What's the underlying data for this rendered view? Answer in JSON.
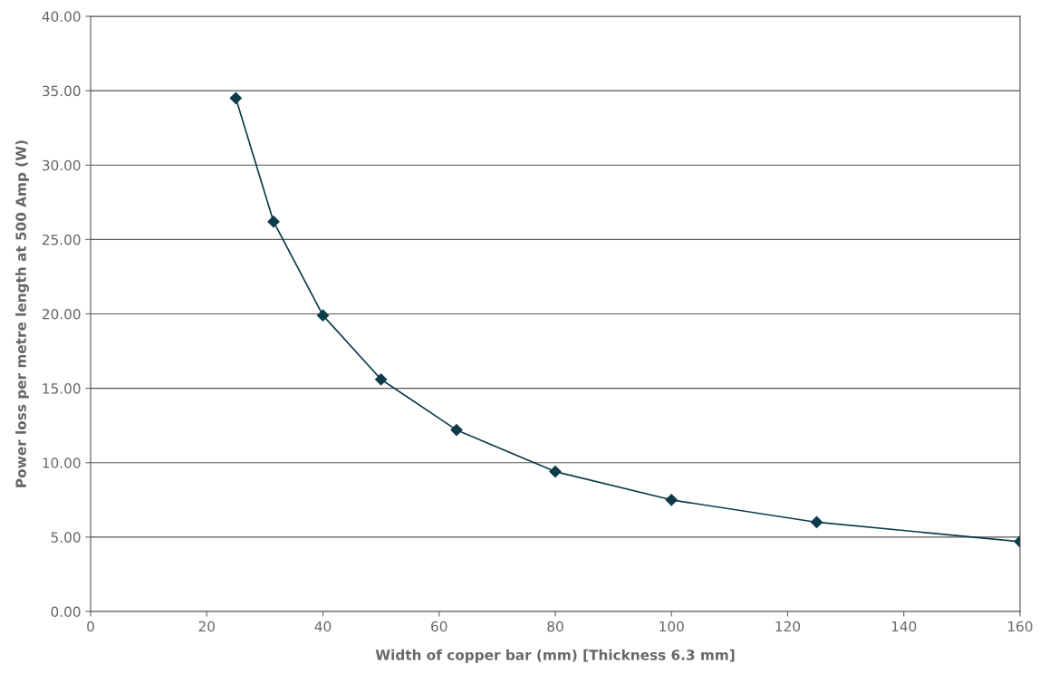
{
  "chart_data": {
    "type": "line",
    "xlabel": "Width of copper bar (mm) [Thickness 6.3 mm]",
    "ylabel": "Power loss per metre length at 500 Amp (W)",
    "x": [
      25,
      31.5,
      40,
      50,
      63,
      80,
      100,
      125,
      160
    ],
    "series": [
      {
        "color": "#0d3b4a",
        "values": [
          34.5,
          26.2,
          19.9,
          15.6,
          12.2,
          9.4,
          7.5,
          6.0,
          4.7
        ]
      }
    ],
    "xlim": [
      0,
      160
    ],
    "xticks": [
      0,
      20,
      40,
      60,
      80,
      100,
      120,
      140,
      160
    ],
    "ylim": [
      0,
      40
    ],
    "yticks": [
      {
        "value": 0,
        "label": "0.00"
      },
      {
        "value": 5,
        "label": "5.00"
      },
      {
        "value": 10,
        "label": "10.00"
      },
      {
        "value": 15,
        "label": "15.00"
      },
      {
        "value": 20,
        "label": "20.00"
      },
      {
        "value": 25,
        "label": "25.00"
      },
      {
        "value": 30,
        "label": "30.00"
      },
      {
        "value": 35,
        "label": "35.00"
      },
      {
        "value": 40,
        "label": "40.00"
      }
    ],
    "grid": "y",
    "marker": "diamond",
    "line_style": "solid"
  }
}
